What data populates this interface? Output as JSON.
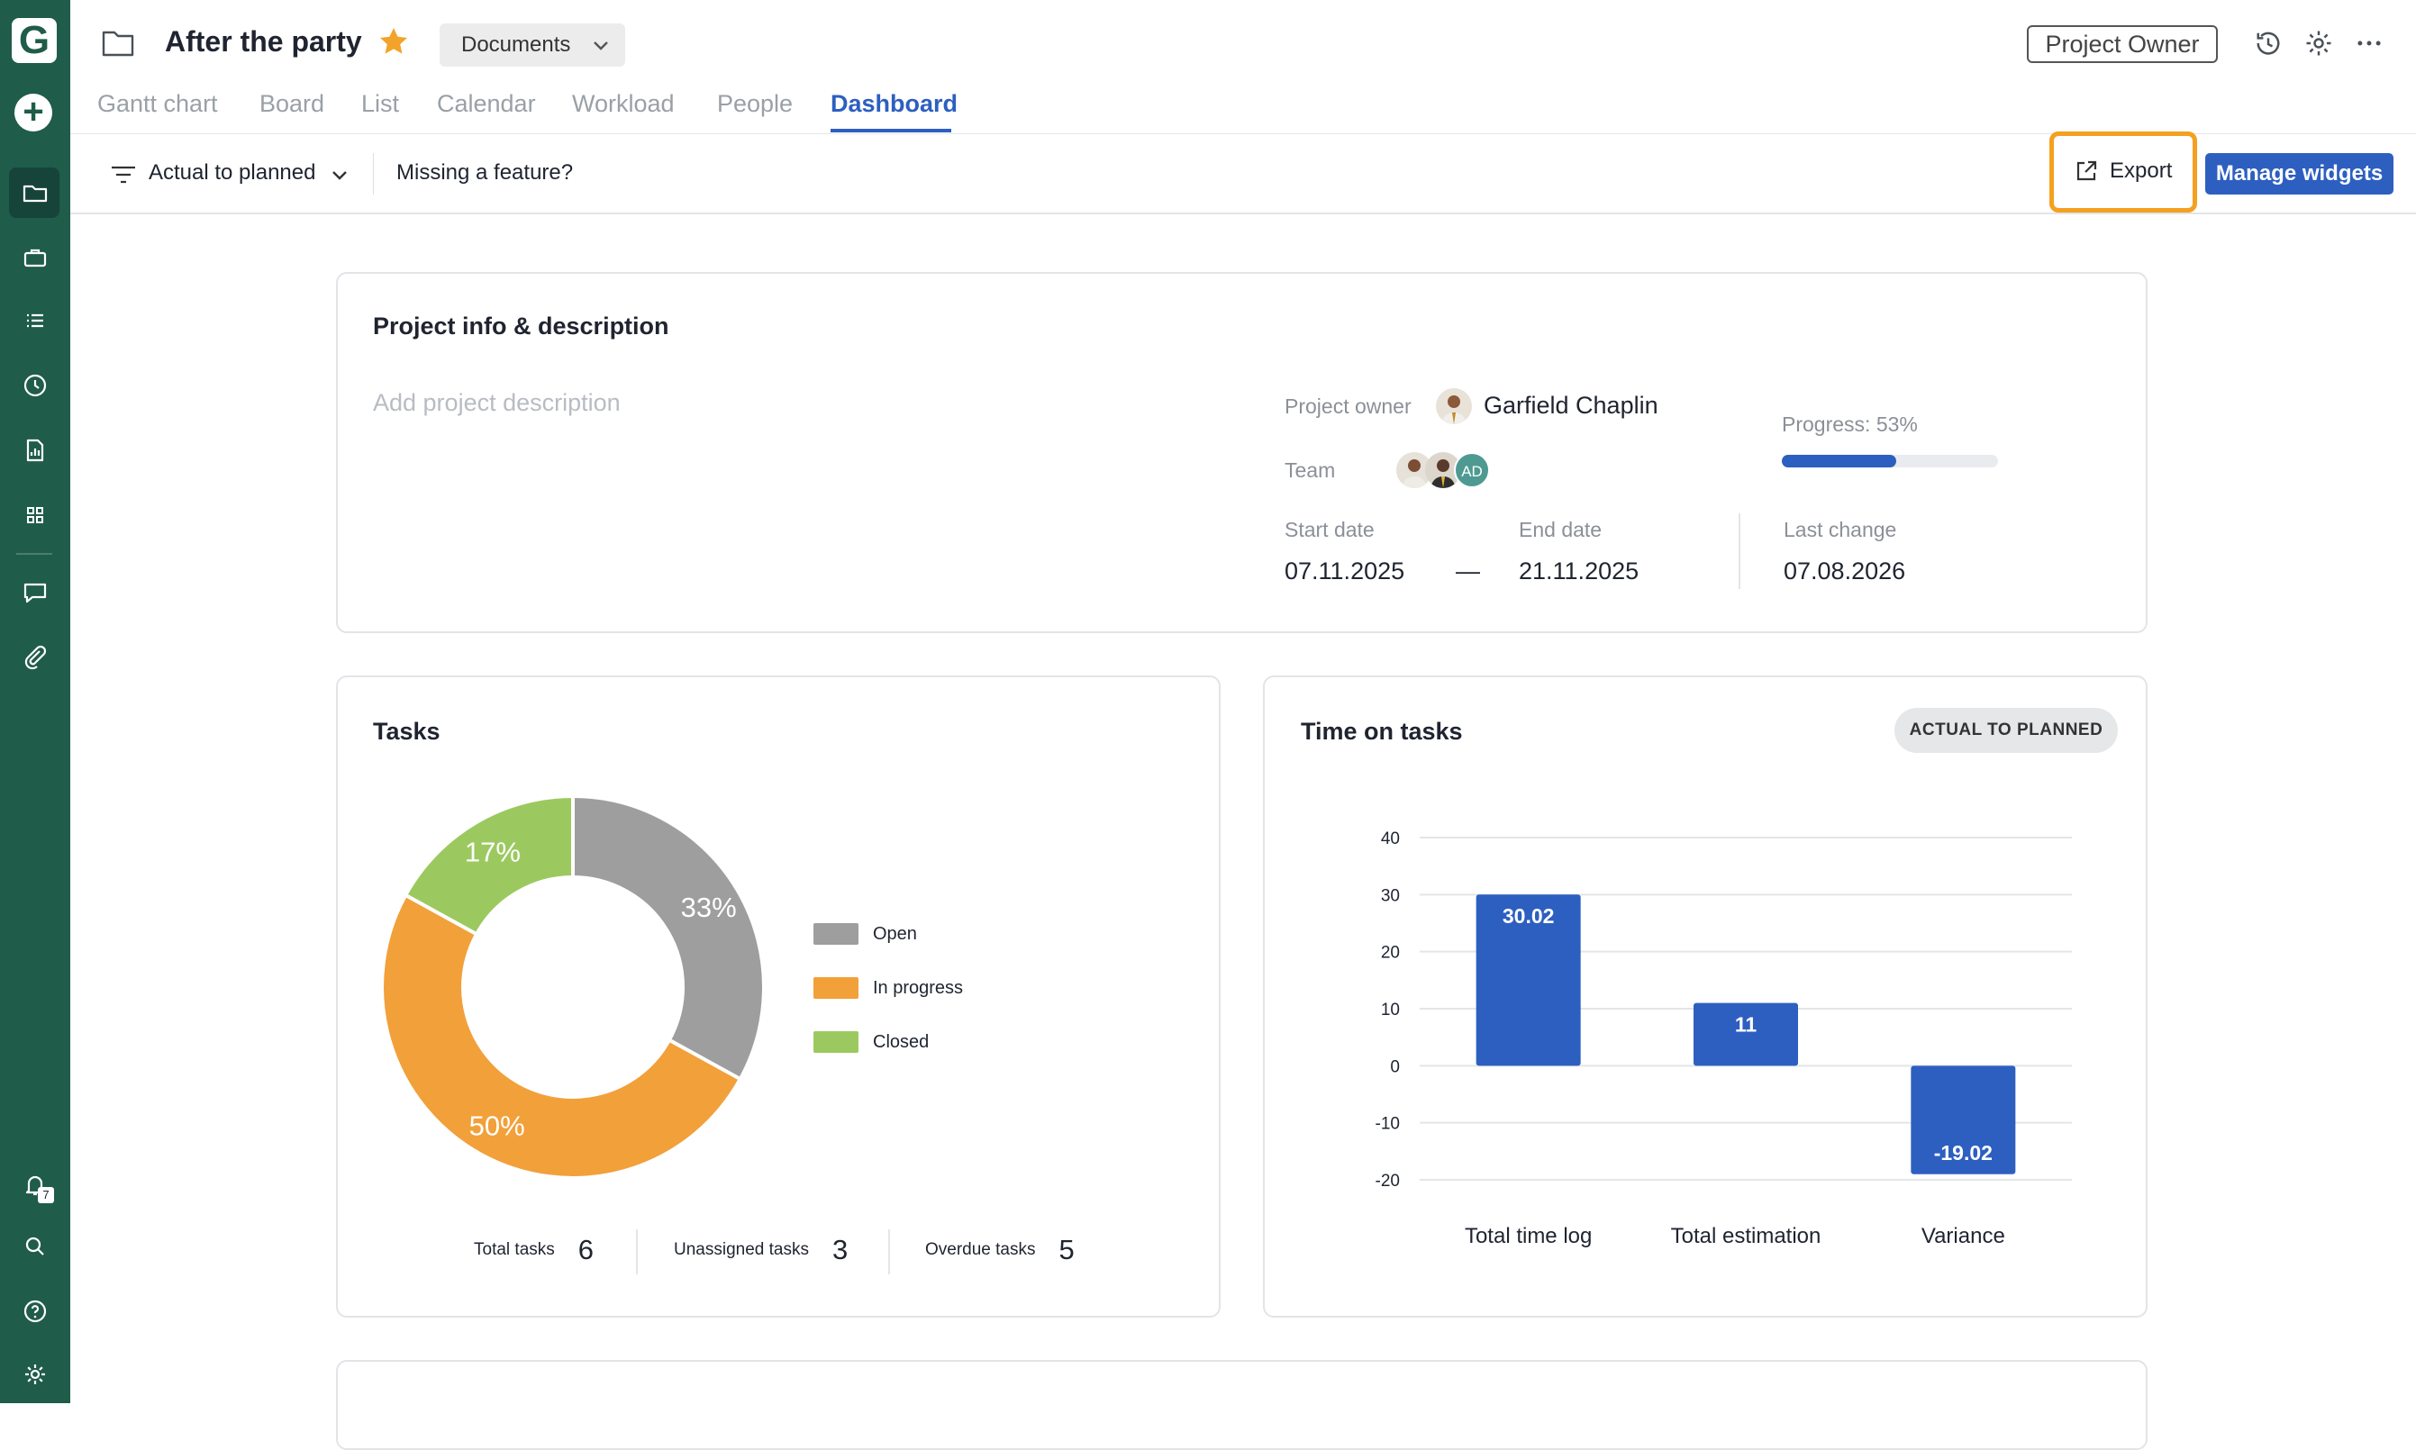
{
  "sidebar": {
    "logo": "G",
    "items": [
      {
        "name": "folder-icon",
        "active": true
      },
      {
        "name": "briefcase-icon"
      },
      {
        "name": "list-icon"
      },
      {
        "name": "clock-icon"
      },
      {
        "name": "report-icon"
      },
      {
        "name": "apps-icon"
      },
      {
        "name": "chat-icon"
      },
      {
        "name": "paperclip-icon"
      }
    ],
    "bottom": [
      "bell-icon",
      "search-icon",
      "help-icon",
      "settings-icon"
    ],
    "notification_count": "7"
  },
  "header": {
    "title": "After the party",
    "documents_label": "Documents",
    "role_label": "Project Owner"
  },
  "tabs": [
    {
      "label": "Gantt chart"
    },
    {
      "label": "Board"
    },
    {
      "label": "List"
    },
    {
      "label": "Calendar"
    },
    {
      "label": "Workload"
    },
    {
      "label": "People"
    },
    {
      "label": "Dashboard",
      "active": true
    }
  ],
  "toolbar": {
    "filter_label": "Actual to planned",
    "missing_feature": "Missing a feature?",
    "export_label": "Export",
    "manage_widgets_label": "Manage widgets"
  },
  "project_info": {
    "title": "Project info & description",
    "description_placeholder": "Add project description",
    "owner_label": "Project owner",
    "owner_name": "Garfield Chaplin",
    "team_label": "Team",
    "team_initials": "AD",
    "progress_label": "Progress: 53%",
    "progress_value": 53,
    "start_label": "Start date",
    "start_value": "07.11.2025",
    "dash": "—",
    "end_label": "End date",
    "end_value": "21.11.2025",
    "last_change_label": "Last change",
    "last_change_value": "07.08.2026"
  },
  "tasks": {
    "title": "Tasks",
    "total_label": "Total tasks",
    "total_value": "6",
    "unassigned_label": "Unassigned tasks",
    "unassigned_value": "3",
    "overdue_label": "Overdue tasks",
    "overdue_value": "5"
  },
  "time_on_tasks": {
    "title": "Time on tasks",
    "badge": "ACTUAL TO PLANNED"
  },
  "chart_data": [
    {
      "type": "pie",
      "title": "Tasks",
      "categories": [
        "Open",
        "In progress",
        "Closed"
      ],
      "values": [
        33,
        50,
        17
      ],
      "labels": [
        "33%",
        "50%",
        "17%"
      ],
      "colors": [
        "#9e9e9e",
        "#f2a03a",
        "#9cc95f"
      ],
      "legend": "right"
    },
    {
      "type": "bar",
      "title": "Time on tasks",
      "categories": [
        "Total time log",
        "Total estimation",
        "Variance"
      ],
      "values": [
        30.02,
        11,
        -19.02
      ],
      "labels": [
        "30.02",
        "11",
        "-19.02"
      ],
      "ylim": [
        -20,
        40
      ],
      "yticks": [
        40,
        30,
        20,
        10,
        0,
        -10,
        -20
      ],
      "grid": true,
      "color": "#2d5fc0"
    }
  ]
}
